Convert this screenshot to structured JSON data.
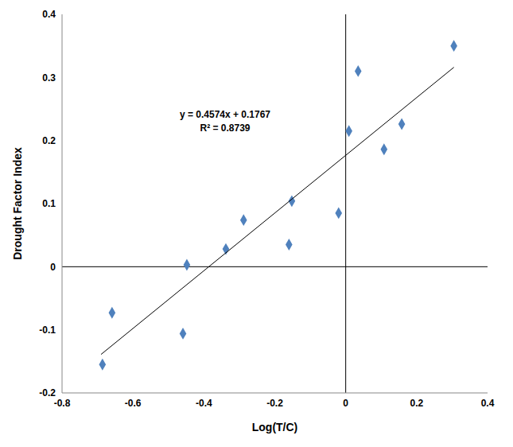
{
  "chart_data": {
    "type": "scatter",
    "x_label": "Log(T/C)",
    "y_label": "Drought Factor Index",
    "annotations": [
      "y = 0.4574x + 0.1767",
      "R² = 0.8739"
    ],
    "xlim": [
      -0.8,
      0.4
    ],
    "xticks": [
      -0.8,
      -0.6,
      -0.4,
      -0.2,
      0,
      0.2,
      0.4
    ],
    "ylim": [
      -0.2,
      0.4
    ],
    "yticks": [
      -0.2,
      -0.1,
      0,
      0.1,
      0.2,
      0.3,
      0.4
    ],
    "grid": false,
    "series": [
      {
        "type": "scatter",
        "color": "#4f81bd",
        "marker": "diamond",
        "x": [
          -0.686,
          -0.659,
          -0.459,
          -0.448,
          -0.338,
          -0.288,
          -0.16,
          -0.152,
          -0.02,
          0.009,
          0.035,
          0.108,
          0.158,
          0.305
        ],
        "values": [
          -0.155,
          -0.073,
          -0.106,
          0.003,
          0.028,
          0.074,
          0.035,
          0.104,
          0.085,
          0.215,
          0.31,
          0.186,
          0.226,
          0.35
        ]
      },
      {
        "type": "line",
        "color": "#000000",
        "line_style": "solid",
        "x": [
          -0.69,
          0.305
        ],
        "values": [
          -0.139,
          0.316
        ]
      }
    ]
  }
}
